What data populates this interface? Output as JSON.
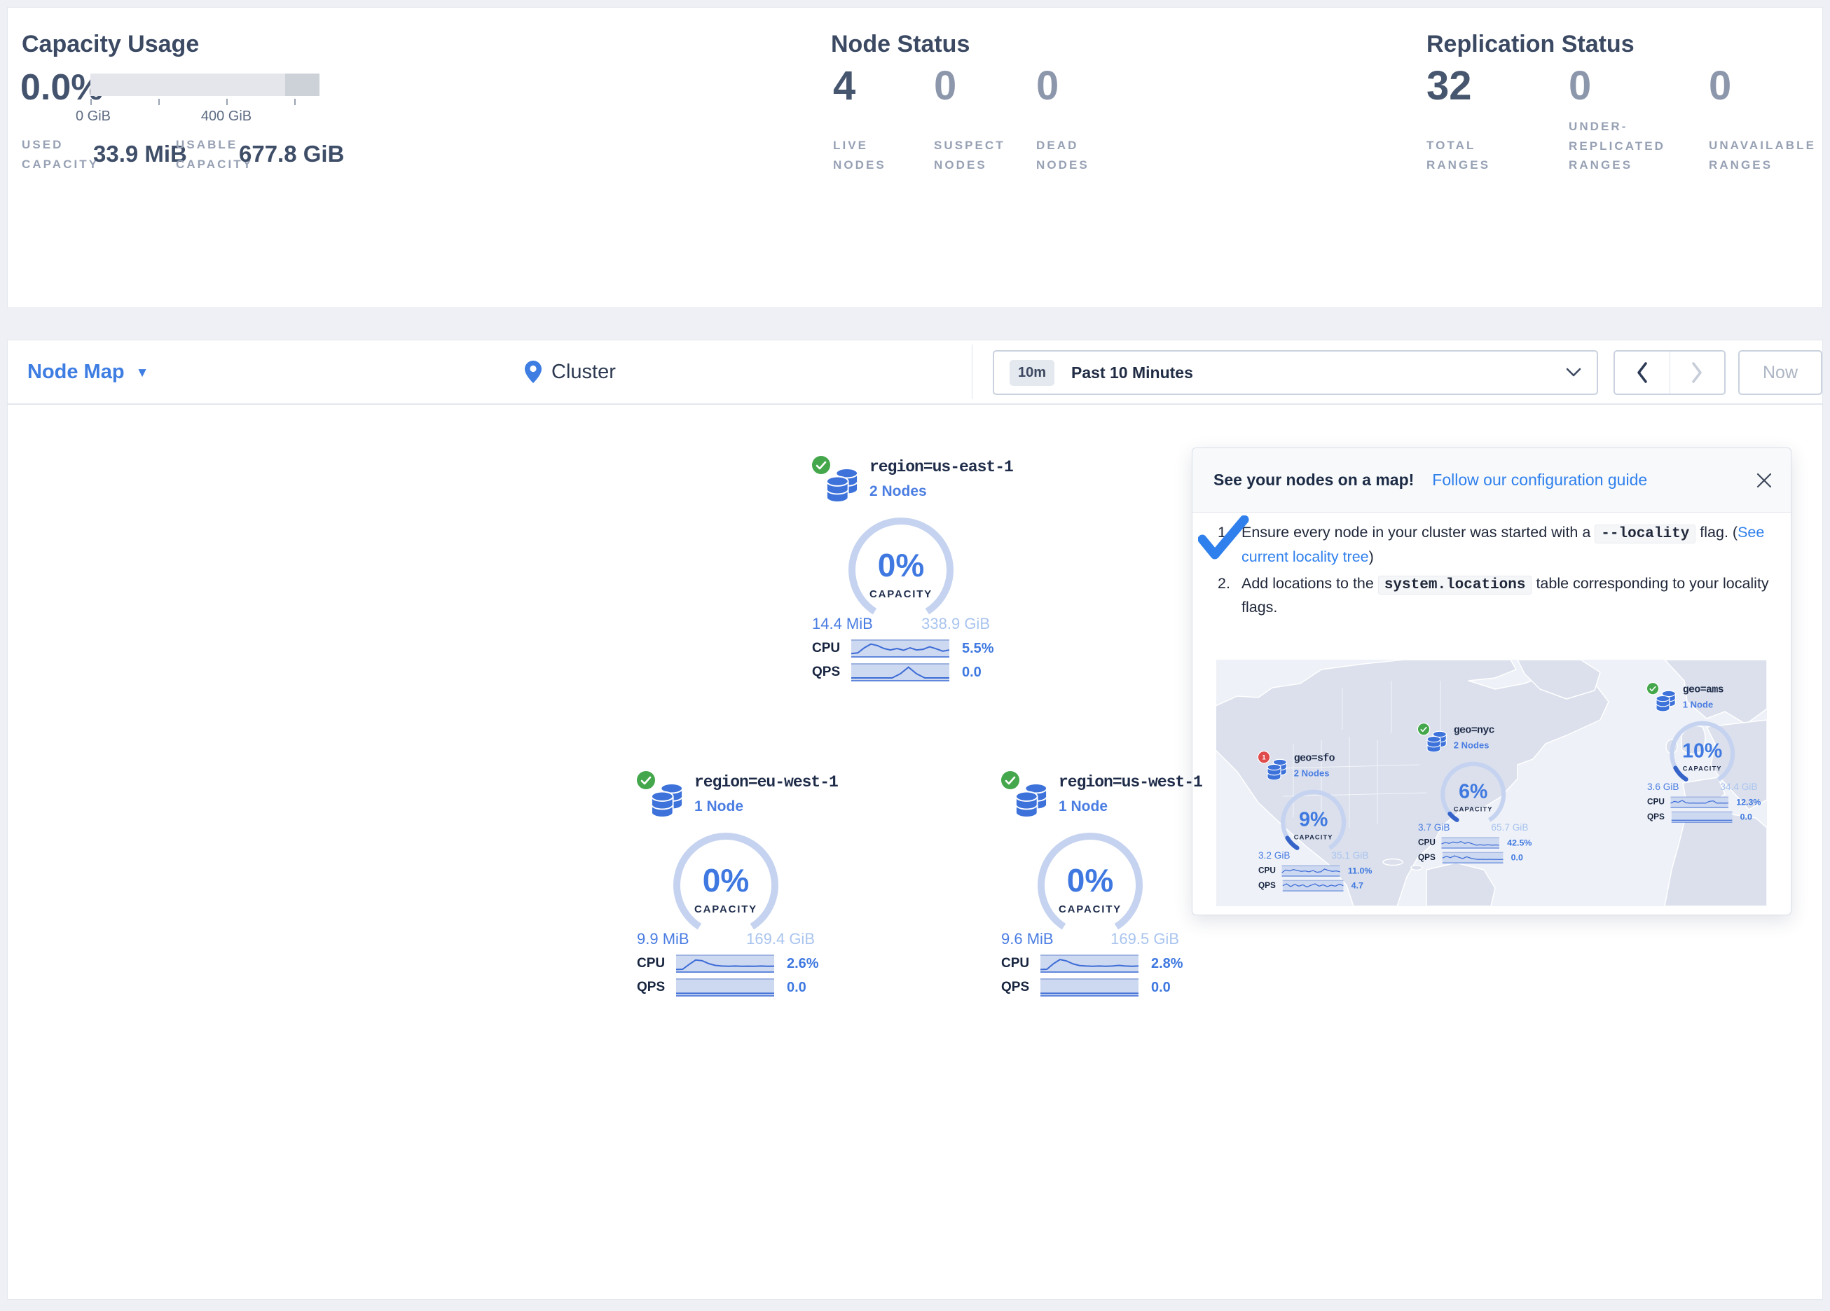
{
  "summary": {
    "capacity": {
      "title": "Capacity Usage",
      "percent": "0.0%",
      "tick_labels": [
        "0 GiB",
        "400 GiB"
      ],
      "used_label": "USED CAPACITY",
      "used_value": "33.9 MiB",
      "usable_label": "USABLE CAPACITY",
      "usable_value": "677.8 GiB"
    },
    "nodes": {
      "title": "Node Status",
      "stats": [
        {
          "value": "4",
          "label": "LIVE NODES"
        },
        {
          "value": "0",
          "label": "SUSPECT NODES"
        },
        {
          "value": "0",
          "label": "DEAD NODES"
        }
      ]
    },
    "replication": {
      "title": "Replication Status",
      "stats": [
        {
          "value": "32",
          "label": "TOTAL RANGES"
        },
        {
          "value": "0",
          "label": "UNDER-REPLICATED RANGES"
        },
        {
          "value": "0",
          "label": "UNAVAILABLE RANGES"
        }
      ]
    }
  },
  "toolbar": {
    "view_label": "Node Map",
    "breadcrumb": "Cluster",
    "range_badge": "10m",
    "range_label": "Past 10 Minutes",
    "now_label": "Now"
  },
  "localities": [
    {
      "title": "region=us-east-1",
      "nodes_label": "2 Nodes",
      "status": "ok",
      "badge": "",
      "percent": "0%",
      "pct": 0,
      "capacity_label": "CAPACITY",
      "used": "14.4 MiB",
      "total": "338.9 GiB",
      "cpu_label": "CPU",
      "cpu_value": "5.5%",
      "qps_label": "QPS",
      "qps_value": "0.0",
      "cpu_spark": [
        0.85,
        0.8,
        0.45,
        0.2,
        0.3,
        0.5,
        0.6,
        0.5,
        0.62,
        0.45,
        0.6,
        0.55,
        0.38,
        0.52,
        0.68,
        0.6
      ],
      "qps_spark": [
        0.88,
        0.88,
        0.88,
        0.88,
        0.88,
        0.88,
        0.6,
        0.15,
        0.6,
        0.88,
        0.88,
        0.88,
        0.88
      ]
    },
    {
      "title": "region=eu-west-1",
      "nodes_label": "1 Node",
      "status": "ok",
      "badge": "",
      "percent": "0%",
      "pct": 0,
      "capacity_label": "CAPACITY",
      "used": "9.9 MiB",
      "total": "169.4 GiB",
      "cpu_label": "CPU",
      "cpu_value": "2.6%",
      "qps_label": "QPS",
      "qps_value": "0.0",
      "cpu_spark": [
        0.9,
        0.88,
        0.55,
        0.25,
        0.3,
        0.5,
        0.62,
        0.66,
        0.68,
        0.66,
        0.68,
        0.67,
        0.68,
        0.66,
        0.68,
        0.67
      ],
      "qps_spark": [
        0.9,
        0.9,
        0.9,
        0.9,
        0.9,
        0.9,
        0.9,
        0.9,
        0.9,
        0.9,
        0.9,
        0.9,
        0.9
      ]
    },
    {
      "title": "region=us-west-1",
      "nodes_label": "1 Node",
      "status": "ok",
      "badge": "",
      "percent": "0%",
      "pct": 0,
      "capacity_label": "CAPACITY",
      "used": "9.6 MiB",
      "total": "169.5 GiB",
      "cpu_label": "CPU",
      "cpu_value": "2.8%",
      "qps_label": "QPS",
      "qps_value": "0.0",
      "cpu_spark": [
        0.9,
        0.88,
        0.5,
        0.22,
        0.32,
        0.52,
        0.63,
        0.66,
        0.68,
        0.66,
        0.68,
        0.66,
        0.62,
        0.66,
        0.68,
        0.66
      ],
      "qps_spark": [
        0.9,
        0.9,
        0.9,
        0.9,
        0.9,
        0.9,
        0.9,
        0.9,
        0.9,
        0.9,
        0.9,
        0.9,
        0.9
      ]
    }
  ],
  "popup": {
    "title": "See your nodes on a map!",
    "link": "Follow our configuration guide",
    "step1_pre": "Ensure every node in your cluster was started with a ",
    "step1_code": "--locality",
    "step1_mid": " flag. (",
    "step1_link": "See current locality tree",
    "step1_post": ")",
    "step2_pre": "Add locations to the ",
    "step2_code": "system.locations",
    "step2_post": " table corresponding to your locality flags.",
    "map_localities": [
      {
        "title": "geo=sfo",
        "nodes_label": "2 Nodes",
        "status": "error",
        "badge": "1",
        "percent": "9%",
        "pct": 9,
        "capacity_label": "CAPACITY",
        "used": "3.2 GiB",
        "total": "35.1 GiB",
        "cpu_label": "CPU",
        "cpu_value": "11.0%",
        "qps_label": "QPS",
        "qps_value": "4.7",
        "cpu_spark": [
          0.7,
          0.4,
          0.5,
          0.35,
          0.45,
          0.55,
          0.5,
          0.6,
          0.45,
          0.65,
          0.6,
          0.3,
          0.45,
          0.55,
          0.5,
          0.6
        ],
        "qps_spark": [
          0.5,
          0.3,
          0.6,
          0.35,
          0.55,
          0.4,
          0.65,
          0.45,
          0.3,
          0.55,
          0.4,
          0.6,
          0.45,
          0.55,
          0.35,
          0.5
        ]
      },
      {
        "title": "geo=nyc",
        "nodes_label": "2 Nodes",
        "status": "ok",
        "badge": "",
        "percent": "6%",
        "pct": 6,
        "capacity_label": "CAPACITY",
        "used": "3.7 GiB",
        "total": "65.7 GiB",
        "cpu_label": "CPU",
        "cpu_value": "42.5%",
        "qps_label": "QPS",
        "qps_value": "0.0",
        "cpu_spark": [
          0.6,
          0.45,
          0.55,
          0.4,
          0.5,
          0.35,
          0.55,
          0.45,
          0.6,
          0.75,
          0.7,
          0.75,
          0.7,
          0.75,
          0.72,
          0.75
        ],
        "qps_spark": [
          0.55,
          0.35,
          0.5,
          0.3,
          0.45,
          0.6,
          0.4,
          0.55,
          0.65,
          0.7,
          0.68,
          0.7,
          0.68,
          0.7,
          0.7,
          0.7
        ]
      },
      {
        "title": "geo=ams",
        "nodes_label": "1 Node",
        "status": "ok",
        "badge": "",
        "percent": "10%",
        "pct": 10,
        "capacity_label": "CAPACITY",
        "used": "3.6 GiB",
        "total": "34.4 GiB",
        "cpu_label": "CPU",
        "cpu_value": "12.3%",
        "qps_label": "QPS",
        "qps_value": "0.0",
        "cpu_spark": [
          0.6,
          0.4,
          0.5,
          0.3,
          0.55,
          0.6,
          0.58,
          0.6,
          0.58,
          0.6,
          0.4,
          0.35,
          0.6,
          0.58,
          0.6,
          0.58
        ],
        "qps_spark": [
          0.85,
          0.85,
          0.85,
          0.85,
          0.85,
          0.85,
          0.85,
          0.85,
          0.85,
          0.85,
          0.85,
          0.85,
          0.85
        ]
      }
    ]
  },
  "colors": {
    "accent_blue": "#3e78e0",
    "link_blue": "#2f80ed",
    "light_blue": "#a9c4ef",
    "arc_track": "#c5d3f0",
    "spark_fill": "#cdd8f1",
    "spark_line": "#3c6cd6",
    "status_green": "#45a74b",
    "status_red": "#e04b4b",
    "bar_track": "#e4e6eb",
    "bar_dark": "#cdd2d9"
  }
}
